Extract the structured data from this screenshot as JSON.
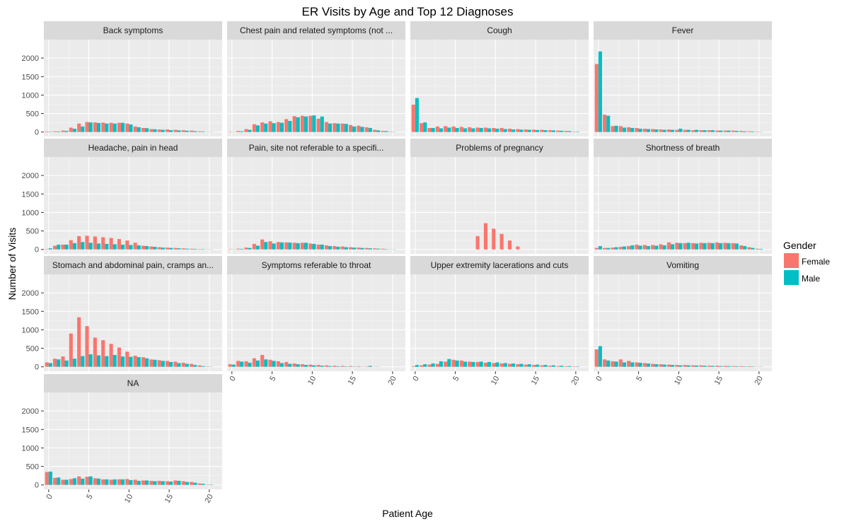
{
  "chart_data": {
    "type": "bar",
    "title": "ER Visits by Age and Top 12 Diagnoses",
    "xlabel": "Patient Age",
    "ylabel": "Number of Visits",
    "x_ticks": [
      0,
      5,
      10,
      15,
      20
    ],
    "y_ticks": [
      0,
      500,
      1000,
      1500,
      2000
    ],
    "xlim": [
      -0.6,
      21.6
    ],
    "ylim": [
      -120,
      2500
    ],
    "grid": true,
    "legend": {
      "title": "Gender",
      "position": "right",
      "entries": [
        {
          "name": "Female",
          "color": "#F8766D"
        },
        {
          "name": "Male",
          "color": "#00BFC4"
        }
      ]
    },
    "panels": [
      {
        "label": "Back symptoms",
        "ages": [
          0,
          1,
          2,
          3,
          4,
          5,
          6,
          7,
          8,
          9,
          10,
          11,
          12,
          13,
          14,
          15,
          16,
          17,
          18,
          19,
          20
        ],
        "female": [
          15,
          20,
          40,
          120,
          230,
          270,
          260,
          255,
          250,
          250,
          230,
          150,
          110,
          80,
          70,
          70,
          60,
          50,
          40,
          20,
          5
        ],
        "male": [
          10,
          15,
          30,
          90,
          150,
          260,
          245,
          230,
          230,
          250,
          205,
          130,
          105,
          75,
          60,
          50,
          45,
          35,
          25,
          15,
          5
        ]
      },
      {
        "label": "Chest pain and related symptoms (not ...",
        "ages": [
          0,
          1,
          2,
          3,
          4,
          5,
          6,
          7,
          8,
          9,
          10,
          11,
          12,
          13,
          14,
          15,
          16,
          17,
          18,
          19,
          20
        ],
        "female": [
          10,
          30,
          80,
          210,
          260,
          290,
          270,
          350,
          430,
          440,
          440,
          360,
          270,
          240,
          230,
          190,
          170,
          130,
          60,
          30,
          10
        ],
        "male": [
          5,
          20,
          60,
          180,
          230,
          240,
          250,
          300,
          400,
          420,
          450,
          420,
          230,
          230,
          220,
          150,
          140,
          110,
          45,
          25,
          5
        ]
      },
      {
        "label": "Cough",
        "ages": [
          0,
          1,
          2,
          3,
          4,
          5,
          6,
          7,
          8,
          9,
          10,
          11,
          12,
          13,
          14,
          15,
          16,
          17,
          18,
          19,
          20
        ],
        "female": [
          740,
          240,
          110,
          150,
          160,
          150,
          140,
          130,
          120,
          120,
          110,
          110,
          90,
          80,
          70,
          65,
          60,
          50,
          40,
          30,
          10
        ],
        "male": [
          920,
          260,
          110,
          100,
          120,
          110,
          100,
          100,
          110,
          100,
          90,
          80,
          70,
          65,
          60,
          55,
          50,
          45,
          35,
          25,
          10
        ]
      },
      {
        "label": "Fever",
        "ages": [
          0,
          1,
          2,
          3,
          4,
          5,
          6,
          7,
          8,
          9,
          10,
          11,
          12,
          13,
          14,
          15,
          16,
          17,
          18,
          19,
          20
        ],
        "female": [
          1840,
          470,
          160,
          160,
          130,
          110,
          90,
          80,
          70,
          70,
          60,
          60,
          50,
          50,
          50,
          40,
          40,
          40,
          30,
          20,
          10
        ],
        "male": [
          2180,
          440,
          170,
          120,
          110,
          90,
          80,
          70,
          60,
          60,
          90,
          60,
          60,
          50,
          50,
          40,
          40,
          30,
          20,
          15,
          5
        ]
      },
      {
        "label": "Headache, pain in head",
        "ages": [
          0,
          1,
          2,
          3,
          4,
          5,
          6,
          7,
          8,
          9,
          10,
          11,
          12,
          13,
          14,
          15,
          16,
          17,
          18,
          19,
          20
        ],
        "female": [
          10,
          100,
          130,
          250,
          360,
          370,
          350,
          330,
          310,
          280,
          240,
          180,
          100,
          80,
          60,
          50,
          40,
          30,
          20,
          10,
          5
        ],
        "male": [
          30,
          130,
          130,
          170,
          200,
          180,
          160,
          150,
          140,
          130,
          120,
          110,
          90,
          70,
          50,
          40,
          30,
          20,
          15,
          10,
          5
        ]
      },
      {
        "label": "Pain, site not referable to a specifi...",
        "ages": [
          0,
          1,
          2,
          3,
          4,
          5,
          6,
          7,
          8,
          9,
          10,
          11,
          12,
          13,
          14,
          15,
          16,
          17,
          18,
          19,
          20
        ],
        "female": [
          10,
          20,
          50,
          150,
          270,
          220,
          200,
          190,
          180,
          180,
          160,
          130,
          110,
          90,
          80,
          60,
          50,
          40,
          30,
          20,
          5
        ],
        "male": [
          5,
          15,
          40,
          100,
          200,
          160,
          190,
          185,
          170,
          180,
          150,
          130,
          90,
          70,
          60,
          50,
          40,
          30,
          20,
          10,
          5
        ]
      },
      {
        "label": "Problems of pregnancy",
        "ages": [
          0,
          1,
          2,
          3,
          4,
          5,
          6,
          7,
          8,
          9,
          10,
          11,
          12,
          13,
          14,
          15,
          16,
          17,
          18,
          19,
          20
        ],
        "female": [
          0,
          0,
          0,
          0,
          0,
          0,
          0,
          0,
          360,
          710,
          560,
          420,
          240,
          80,
          0,
          0,
          0,
          0,
          0,
          0,
          0
        ],
        "male": [
          0,
          0,
          0,
          0,
          0,
          0,
          0,
          0,
          0,
          0,
          0,
          0,
          0,
          0,
          0,
          0,
          0,
          0,
          0,
          0,
          0
        ]
      },
      {
        "label": "Shortness of breath",
        "ages": [
          0,
          1,
          2,
          3,
          4,
          5,
          6,
          7,
          8,
          9,
          10,
          11,
          12,
          13,
          14,
          15,
          16,
          17,
          18,
          19,
          20
        ],
        "female": [
          40,
          40,
          50,
          70,
          90,
          130,
          120,
          120,
          140,
          190,
          180,
          170,
          170,
          180,
          180,
          190,
          180,
          170,
          110,
          60,
          20
        ],
        "male": [
          90,
          40,
          60,
          80,
          110,
          100,
          90,
          100,
          110,
          140,
          170,
          180,
          160,
          170,
          170,
          170,
          170,
          160,
          90,
          40,
          15
        ]
      },
      {
        "label": "Stomach and abdominal pain, cramps an...",
        "ages": [
          0,
          1,
          2,
          3,
          4,
          5,
          6,
          7,
          8,
          9,
          10,
          11,
          12,
          13,
          14,
          15,
          16,
          17,
          18,
          19,
          20
        ],
        "female": [
          120,
          220,
          280,
          900,
          1340,
          1100,
          790,
          720,
          620,
          520,
          410,
          300,
          260,
          200,
          180,
          160,
          140,
          110,
          80,
          40,
          10
        ],
        "male": [
          100,
          200,
          170,
          220,
          290,
          340,
          310,
          290,
          320,
          280,
          270,
          260,
          230,
          190,
          160,
          130,
          100,
          80,
          50,
          20,
          5
        ]
      },
      {
        "label": "Symptoms referable to throat",
        "ages": [
          0,
          1,
          2,
          3,
          4,
          5,
          6,
          7,
          8,
          9,
          10,
          11,
          12,
          13,
          14,
          15,
          16,
          17,
          18,
          19,
          20
        ],
        "female": [
          70,
          160,
          150,
          230,
          320,
          190,
          150,
          130,
          90,
          70,
          60,
          50,
          40,
          30,
          25,
          20,
          15,
          10,
          5,
          0,
          0
        ],
        "male": [
          60,
          140,
          110,
          170,
          200,
          160,
          100,
          80,
          70,
          50,
          40,
          30,
          20,
          15,
          10,
          8,
          5,
          25,
          5,
          0,
          0
        ]
      },
      {
        "label": "Upper extremity lacerations and cuts",
        "ages": [
          0,
          1,
          2,
          3,
          4,
          5,
          6,
          7,
          8,
          9,
          10,
          11,
          12,
          13,
          14,
          15,
          16,
          17,
          18,
          19,
          20
        ],
        "female": [
          15,
          40,
          60,
          80,
          140,
          190,
          170,
          140,
          130,
          110,
          100,
          90,
          80,
          70,
          60,
          50,
          40,
          30,
          20,
          15,
          10
        ],
        "male": [
          50,
          70,
          90,
          150,
          210,
          170,
          140,
          130,
          140,
          130,
          120,
          100,
          90,
          80,
          70,
          60,
          50,
          40,
          30,
          20,
          10
        ]
      },
      {
        "label": "Vomiting",
        "ages": [
          0,
          1,
          2,
          3,
          4,
          5,
          6,
          7,
          8,
          9,
          10,
          11,
          12,
          13,
          14,
          15,
          16,
          17,
          18,
          19,
          20
        ],
        "female": [
          470,
          200,
          150,
          200,
          160,
          120,
          100,
          80,
          70,
          60,
          50,
          50,
          40,
          40,
          30,
          30,
          25,
          20,
          20,
          15,
          5
        ],
        "male": [
          560,
          170,
          140,
          120,
          120,
          110,
          90,
          70,
          60,
          50,
          40,
          40,
          35,
          30,
          25,
          20,
          20,
          15,
          10,
          10,
          5
        ]
      },
      {
        "label": "NA",
        "ages": [
          0,
          1,
          2,
          3,
          4,
          5,
          6,
          7,
          8,
          9,
          10,
          11,
          12,
          13,
          14,
          15,
          16,
          17,
          18,
          19,
          20
        ],
        "female": [
          350,
          190,
          140,
          160,
          230,
          220,
          180,
          150,
          140,
          150,
          160,
          140,
          120,
          110,
          110,
          100,
          120,
          100,
          80,
          40,
          10
        ],
        "male": [
          360,
          200,
          140,
          180,
          170,
          230,
          170,
          150,
          150,
          150,
          130,
          110,
          120,
          100,
          100,
          90,
          110,
          80,
          60,
          30,
          10
        ]
      }
    ]
  }
}
